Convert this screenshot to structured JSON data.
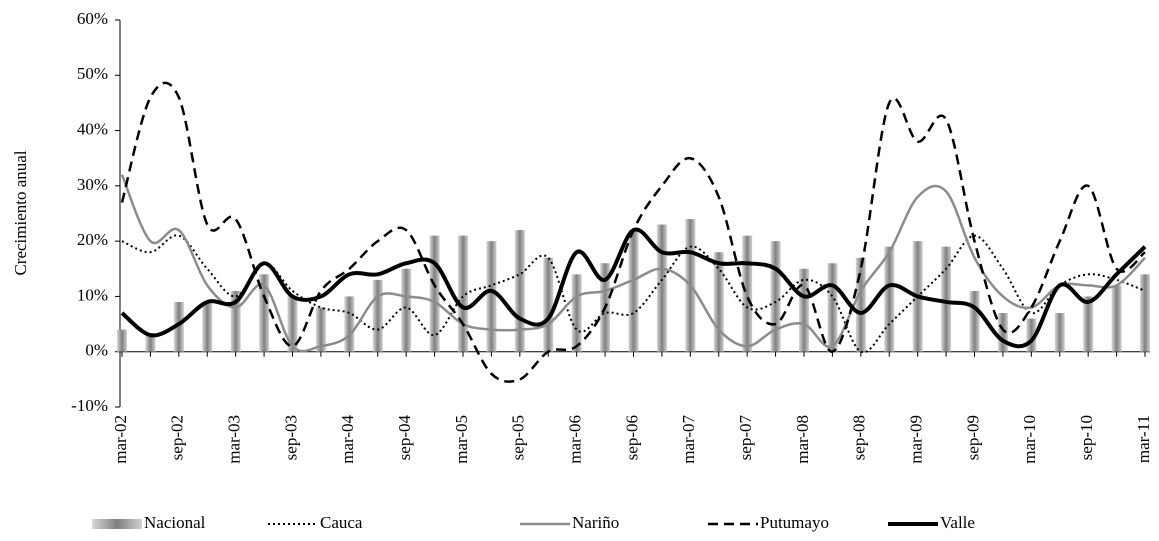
{
  "chart_data": {
    "type": "combo",
    "y_label": "Crecimiento anual",
    "categories": [
      "mar-02",
      null,
      "sep-02",
      null,
      "mar-03",
      null,
      "sep-03",
      null,
      "mar-04",
      null,
      "sep-04",
      null,
      "mar-05",
      null,
      "sep-05",
      null,
      "mar-06",
      null,
      "sep-06",
      null,
      "mar-07",
      null,
      "sep-07",
      null,
      "mar-08",
      null,
      "sep-08",
      null,
      "mar-09",
      null,
      "sep-09",
      null,
      "mar-10",
      null,
      "sep-10",
      null,
      "mar-11"
    ],
    "series": [
      {
        "name": "Nacional",
        "type": "bar",
        "color": "#9a9a9a",
        "values": [
          4,
          3,
          9,
          9,
          11,
          14,
          10,
          8,
          10,
          13,
          15,
          21,
          21,
          20,
          22,
          17,
          14,
          16,
          22,
          23,
          24,
          18,
          21,
          20,
          15,
          16,
          17,
          19,
          20,
          19,
          11,
          7,
          6,
          7,
          10,
          12,
          14
        ]
      },
      {
        "name": "Cauca",
        "type": "line",
        "style": "dotted",
        "color": "#000000",
        "values": [
          20,
          18,
          21,
          15,
          10,
          16,
          11,
          8,
          7,
          4,
          8,
          3,
          10,
          12,
          14,
          17,
          4,
          7,
          7,
          13,
          19,
          15,
          8,
          9,
          13,
          10,
          0,
          5,
          10,
          15,
          21,
          15,
          7,
          12,
          14,
          13,
          11
        ]
      },
      {
        "name": "Nariño",
        "type": "line",
        "style": "solid",
        "color": "#8c8c8c",
        "values": [
          32,
          20,
          22,
          12,
          8,
          12,
          1,
          1,
          3,
          10,
          10,
          9,
          5,
          4,
          4,
          5,
          10,
          11,
          13,
          15,
          12,
          4,
          1,
          4,
          5,
          1,
          11,
          18,
          28,
          29,
          17,
          10,
          8,
          12,
          12,
          12,
          17
        ]
      },
      {
        "name": "Putumayo",
        "type": "line",
        "style": "dashed",
        "color": "#000000",
        "values": [
          27,
          46,
          46,
          23,
          24,
          10,
          1,
          11,
          15,
          20,
          22,
          12,
          5,
          -4,
          -5,
          0,
          1,
          8,
          22,
          30,
          35,
          28,
          10,
          5,
          12,
          0,
          15,
          45,
          38,
          42,
          20,
          4,
          8,
          20,
          30,
          15,
          18
        ]
      },
      {
        "name": "Valle",
        "type": "line",
        "style": "thick",
        "color": "#000000",
        "values": [
          7,
          3,
          5,
          9,
          9,
          16,
          10,
          10,
          14,
          14,
          16,
          16,
          8,
          11,
          6,
          6,
          18,
          13,
          22,
          18,
          18,
          16,
          16,
          15,
          10,
          12,
          7,
          12,
          10,
          9,
          8,
          2,
          2,
          12,
          9,
          14,
          19
        ]
      }
    ],
    "ylim": [
      -10,
      60
    ],
    "yticks": [
      {
        "value": -10,
        "label": "-10%"
      },
      {
        "value": 0,
        "label": "0%"
      },
      {
        "value": 10,
        "label": "10%"
      },
      {
        "value": 20,
        "label": "20%"
      },
      {
        "value": 30,
        "label": "30%"
      },
      {
        "value": 40,
        "label": "40%"
      },
      {
        "value": 50,
        "label": "50%"
      },
      {
        "value": 60,
        "label": "60%"
      }
    ],
    "legend": "bottom"
  }
}
